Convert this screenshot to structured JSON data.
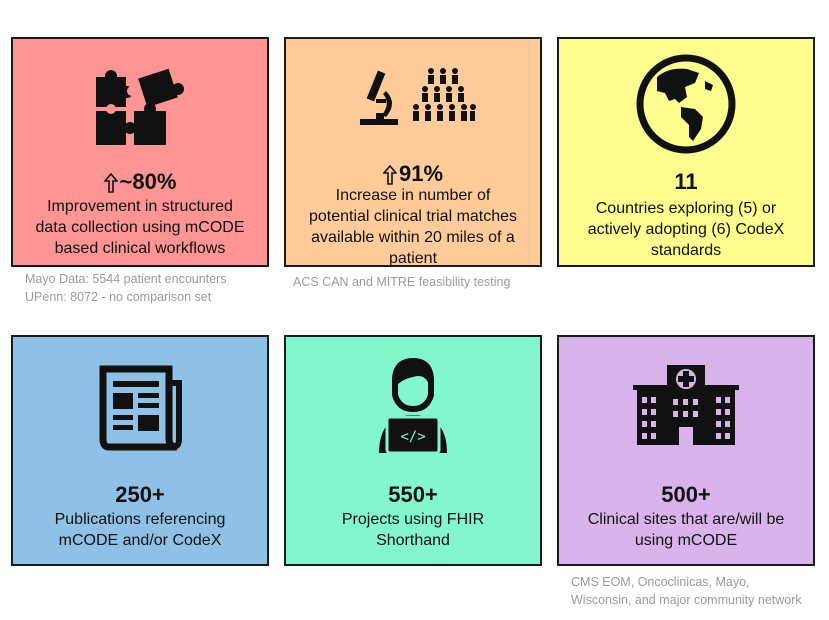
{
  "colors": {
    "card1": "#fe9494",
    "card2": "#ffcb9b",
    "card3": "#fdfc8f",
    "card4": "#8fc1e6",
    "card5": "#84f6cd",
    "card6": "#d9b4ec"
  },
  "cards": [
    {
      "icon": "puzzle-icon",
      "arrow": "up-arrow-icon",
      "metric": "~80%",
      "desc": [
        "Improvement in structured",
        "data collection using mCODE",
        "based clinical workflows"
      ]
    },
    {
      "icon": "microscope-icon",
      "icon2": "people-group-icon",
      "arrow": "up-arrow-icon",
      "metric": "91%",
      "desc": [
        "Increase in number of",
        "potential clinical trial matches",
        "available within 20 miles of a",
        "patient"
      ]
    },
    {
      "icon": "globe-icon",
      "metric": "11",
      "desc": [
        "Countries exploring (5) or",
        "actively adopting (6) CodeX",
        "standards"
      ]
    },
    {
      "icon": "newspaper-icon",
      "metric": "250+",
      "desc": [
        "Publications referencing",
        "mCODE and/or CodeX"
      ]
    },
    {
      "icon": "developer-icon",
      "metric": "550+",
      "desc": [
        "Projects using FHIR",
        "Shorthand"
      ]
    },
    {
      "icon": "hospital-icon",
      "metric": "500+",
      "desc": [
        "Clinical sites that are/will be",
        "using mCODE"
      ]
    }
  ],
  "notes": {
    "card1": [
      "Mayo Data: 5544 patient encounters",
      "UPenn: 8072 - no comparison set"
    ],
    "card2": [
      "ACS CAN and MITRE feasibility testing"
    ],
    "card6": [
      "CMS EOM, Oncoclinicas, Mayo,",
      "Wisconsin, and major community network"
    ]
  }
}
